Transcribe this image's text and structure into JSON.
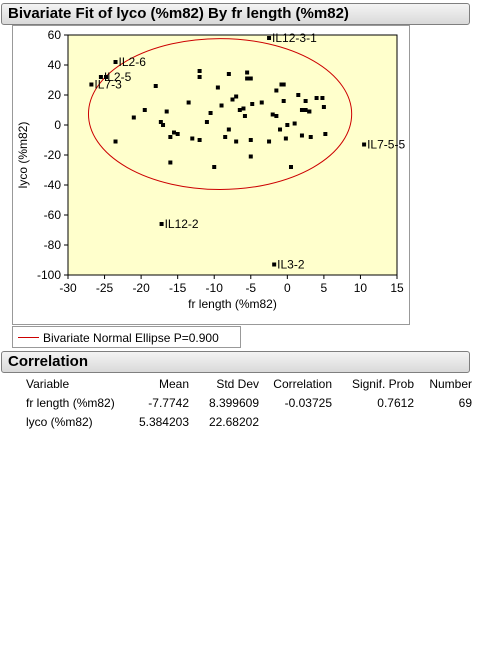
{
  "bivariate": {
    "title": "Bivariate Fit of lyco (%m82) By fr length (%m82)",
    "legend_label": "Bivariate Normal Ellipse P=0.900",
    "ellipse_color": "#cc0000",
    "plot_background": "#ffffcc"
  },
  "correlation": {
    "title": "Correlation",
    "headers": [
      "Variable",
      "Mean",
      "Std Dev",
      "Correlation",
      "Signif. Prob",
      "Number"
    ],
    "rows": [
      [
        "fr length (%m82)",
        "-7.7742",
        "8.399609",
        "-0.03725",
        "0.7612",
        "69"
      ],
      [
        "lyco (%m82)",
        "5.384203",
        "22.68202",
        "",
        "",
        ""
      ]
    ]
  },
  "chart_data": {
    "type": "scatter",
    "title": "Bivariate Fit of lyco (%m82) By fr length (%m82)",
    "xlabel": "fr length (%m82)",
    "ylabel": "lyco (%m82)",
    "xlim": [
      -30,
      15
    ],
    "ylim": [
      -100,
      60
    ],
    "xticks": [
      -30,
      -25,
      -20,
      -15,
      -10,
      -5,
      0,
      5,
      10,
      15
    ],
    "yticks": [
      -100,
      -80,
      -60,
      -40,
      -20,
      0,
      20,
      40,
      60
    ],
    "grid": false,
    "legend": "bottom-left",
    "points": [
      {
        "x": -2.5,
        "y": 58,
        "label": "IL12-3-1"
      },
      {
        "x": -23.5,
        "y": 42,
        "label": "IL2-6"
      },
      {
        "x": -25.5,
        "y": 32,
        "label": "IL2-5"
      },
      {
        "x": -26.8,
        "y": 27,
        "label": "IL7-3"
      },
      {
        "x": 10.5,
        "y": -13,
        "label": "IL7-5-5"
      },
      {
        "x": -17.2,
        "y": -66,
        "label": "IL12-2"
      },
      {
        "x": -1.8,
        "y": -93,
        "label": "IL3-2"
      },
      {
        "x": -24.8,
        "y": 32
      },
      {
        "x": -23.5,
        "y": -11
      },
      {
        "x": -21,
        "y": 5
      },
      {
        "x": -19.5,
        "y": 10
      },
      {
        "x": -18,
        "y": 26
      },
      {
        "x": -17.3,
        "y": 2
      },
      {
        "x": -17,
        "y": 0
      },
      {
        "x": -16.5,
        "y": 9
      },
      {
        "x": -16,
        "y": -8
      },
      {
        "x": -15.5,
        "y": -5
      },
      {
        "x": -16,
        "y": -25
      },
      {
        "x": -15,
        "y": -6
      },
      {
        "x": -13.5,
        "y": 15
      },
      {
        "x": -13,
        "y": -9
      },
      {
        "x": -12,
        "y": 36
      },
      {
        "x": -12,
        "y": 32
      },
      {
        "x": -12,
        "y": -10
      },
      {
        "x": -11,
        "y": 2
      },
      {
        "x": -10.5,
        "y": 8
      },
      {
        "x": -10,
        "y": -28
      },
      {
        "x": -9.5,
        "y": 25
      },
      {
        "x": -9,
        "y": 13
      },
      {
        "x": -8.5,
        "y": -8
      },
      {
        "x": -8,
        "y": 34
      },
      {
        "x": -8,
        "y": -3
      },
      {
        "x": -7.5,
        "y": 17
      },
      {
        "x": -7,
        "y": -11
      },
      {
        "x": -7,
        "y": 19
      },
      {
        "x": -6.5,
        "y": 10
      },
      {
        "x": -6,
        "y": 11
      },
      {
        "x": -5.8,
        "y": 6
      },
      {
        "x": -5.5,
        "y": 31
      },
      {
        "x": -5.5,
        "y": 35
      },
      {
        "x": -5,
        "y": 31
      },
      {
        "x": -5,
        "y": -10
      },
      {
        "x": -5,
        "y": -21
      },
      {
        "x": -4.8,
        "y": 14
      },
      {
        "x": -3.5,
        "y": 15
      },
      {
        "x": -2.5,
        "y": -11
      },
      {
        "x": -2,
        "y": 7
      },
      {
        "x": -1.5,
        "y": 6
      },
      {
        "x": -1.5,
        "y": 23
      },
      {
        "x": -1,
        "y": -3
      },
      {
        "x": -0.8,
        "y": 27
      },
      {
        "x": -0.5,
        "y": 27
      },
      {
        "x": -0.5,
        "y": 16
      },
      {
        "x": -0.2,
        "y": -9
      },
      {
        "x": 0,
        "y": 0
      },
      {
        "x": 0.5,
        "y": -28
      },
      {
        "x": 1,
        "y": 1
      },
      {
        "x": 1.5,
        "y": 20
      },
      {
        "x": 2,
        "y": 10
      },
      {
        "x": 2,
        "y": -7
      },
      {
        "x": 2.5,
        "y": 16
      },
      {
        "x": 2.5,
        "y": 10
      },
      {
        "x": 3,
        "y": 9
      },
      {
        "x": 3,
        "y": 9
      },
      {
        "x": 3.2,
        "y": -8
      },
      {
        "x": 4,
        "y": 18
      },
      {
        "x": 4.8,
        "y": 18
      },
      {
        "x": 5,
        "y": 12
      },
      {
        "x": 5.2,
        "y": -6
      }
    ],
    "ellipse": {
      "cx": -9.2,
      "cy": 7.3,
      "rx": 18.0,
      "ry": 50.3,
      "color": "#cc0000"
    }
  }
}
